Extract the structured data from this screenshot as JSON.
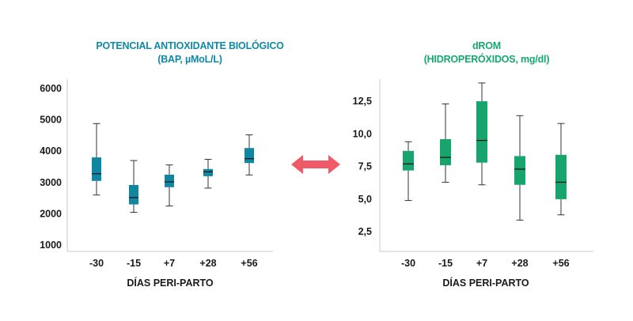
{
  "colors": {
    "bap": "#1186a3",
    "drom": "#17a46d",
    "arrow": "#ef5a68",
    "axis": "#c8c8c8",
    "median": "#1a1a1a",
    "whisker": "#333333"
  },
  "arrow": {
    "icon": "double-headed-arrow-icon"
  },
  "chart_data": [
    {
      "type": "box",
      "title": "POTENCIAL ANTIOXIDANTE BIOLÓGICO",
      "subtitle": "(BAP, µMoL/L)",
      "xlabel": "DÍAS PERI-PARTO",
      "ylabel": "",
      "categories": [
        "-30",
        "-15",
        "+7",
        "+28",
        "+56"
      ],
      "ylim": [
        800,
        6300
      ],
      "yticks": [
        "1000",
        "2000",
        "3000",
        "4000",
        "5000",
        "6000"
      ],
      "ytick_values": [
        1000,
        2000,
        3000,
        4000,
        5000,
        6000
      ],
      "grid": false,
      "boxes": [
        {
          "min": 2600,
          "q1": 3050,
          "median": 3280,
          "q3": 3800,
          "max": 4880
        },
        {
          "min": 2050,
          "q1": 2300,
          "median": 2520,
          "q3": 2920,
          "max": 3700
        },
        {
          "min": 2250,
          "q1": 2850,
          "median": 3020,
          "q3": 3250,
          "max": 3560
        },
        {
          "min": 2820,
          "q1": 3200,
          "median": 3340,
          "q3": 3430,
          "max": 3740
        },
        {
          "min": 3240,
          "q1": 3620,
          "median": 3760,
          "q3": 4100,
          "max": 4520
        }
      ]
    },
    {
      "type": "box",
      "title": "dROM",
      "subtitle": "(HIDROPERÓXIDOS, mg/dl)",
      "xlabel": "DÍAS PERI-PARTO",
      "ylabel": "",
      "categories": [
        "-30",
        "-15",
        "+7",
        "+28",
        "+56"
      ],
      "ylim": [
        1.0,
        14.2
      ],
      "yticks": [
        "2,5",
        "5,0",
        "7,5",
        "10,0",
        "12,5"
      ],
      "ytick_values": [
        2.5,
        5.0,
        7.5,
        10.0,
        12.5
      ],
      "grid": false,
      "boxes": [
        {
          "min": 4.9,
          "q1": 7.2,
          "median": 7.7,
          "q3": 8.7,
          "max": 9.4
        },
        {
          "min": 6.3,
          "q1": 7.6,
          "median": 8.2,
          "q3": 9.6,
          "max": 12.3
        },
        {
          "min": 6.1,
          "q1": 7.8,
          "median": 9.5,
          "q3": 12.5,
          "max": 13.9
        },
        {
          "min": 3.4,
          "q1": 6.1,
          "median": 7.3,
          "q3": 8.3,
          "max": 11.4
        },
        {
          "min": 3.8,
          "q1": 5.0,
          "median": 6.3,
          "q3": 8.4,
          "max": 10.8
        }
      ]
    }
  ]
}
